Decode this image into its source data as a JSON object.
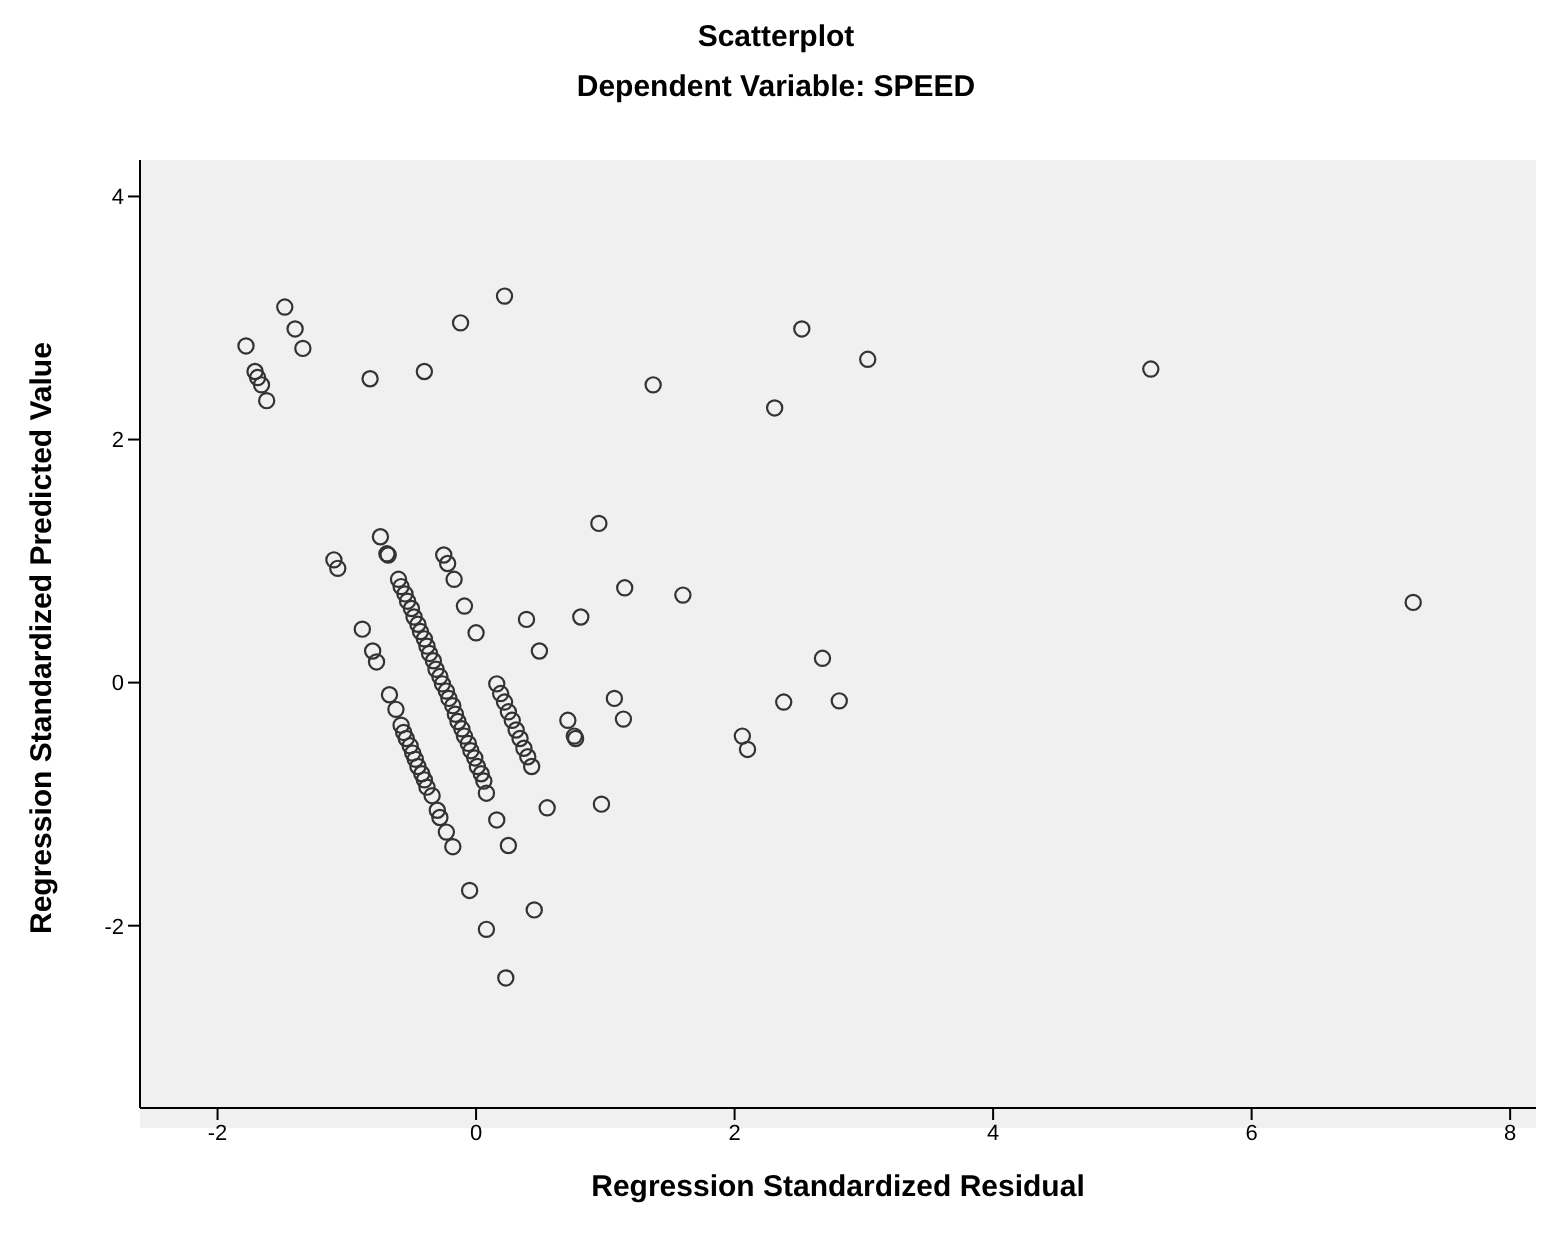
{
  "chart_data": {
    "type": "scatter",
    "title": "Scatterplot",
    "subtitle": "Dependent Variable: SPEED",
    "xlabel": "Regression Standardized Residual",
    "ylabel": "Regression Standardized Predicted Value",
    "xlim": [
      -2.6,
      8.2
    ],
    "ylim": [
      -3.5,
      4.3
    ],
    "xticks": [
      -2,
      0,
      2,
      4,
      6,
      8
    ],
    "yticks": [
      -2,
      0,
      2,
      4
    ],
    "grid": false,
    "legend": false,
    "marker": "circle",
    "series": [
      {
        "color": "#333333",
        "x": [
          -1.78,
          -1.71,
          -1.69,
          -1.66,
          -1.62,
          -1.48,
          -1.4,
          -1.34,
          -0.82,
          -0.4,
          -0.12,
          0.22,
          1.37,
          2.31,
          2.52,
          3.03,
          5.22,
          7.25,
          -1.1,
          -1.07,
          -0.74,
          -0.69,
          -0.68,
          -0.88,
          -0.8,
          -0.77,
          -0.67,
          -0.62,
          -0.34,
          -0.3,
          -0.28,
          -0.23,
          -0.18,
          -0.05,
          -0.25,
          -0.22,
          -0.17,
          -0.09,
          0.0,
          0.08,
          0.16,
          0.25,
          0.39,
          0.49,
          0.55,
          0.95,
          1.15,
          0.81,
          0.71,
          0.76,
          0.77,
          1.07,
          1.14,
          0.97,
          0.08,
          0.23,
          0.45,
          1.6,
          2.68,
          2.38,
          2.81,
          2.06,
          2.1,
          -0.6,
          -0.58,
          -0.55,
          -0.53,
          -0.5,
          -0.48,
          -0.45,
          -0.43,
          -0.4,
          -0.38,
          -0.36,
          -0.33,
          -0.31,
          -0.28,
          -0.26,
          -0.23,
          -0.21,
          -0.18,
          -0.16,
          -0.14,
          -0.11,
          -0.09,
          -0.06,
          -0.04,
          -0.01,
          0.01,
          0.04,
          0.06,
          -0.58,
          -0.56,
          -0.54,
          -0.51,
          -0.49,
          -0.47,
          -0.45,
          -0.42,
          -0.4,
          -0.38,
          0.16,
          0.19,
          0.22,
          0.25,
          0.28,
          0.31,
          0.34,
          0.37,
          0.4,
          0.43
        ],
        "values": [
          2.77,
          2.56,
          2.51,
          2.45,
          2.32,
          3.09,
          2.91,
          2.75,
          2.5,
          2.56,
          2.96,
          3.18,
          2.45,
          2.26,
          2.91,
          2.66,
          2.58,
          0.66,
          1.01,
          0.94,
          1.2,
          1.06,
          1.05,
          0.44,
          0.26,
          0.17,
          -0.1,
          -0.22,
          -0.93,
          -1.05,
          -1.11,
          -1.23,
          -1.35,
          -1.71,
          1.05,
          0.98,
          0.85,
          0.63,
          0.41,
          -0.91,
          -1.13,
          -1.34,
          0.52,
          0.26,
          -1.03,
          1.31,
          0.78,
          0.54,
          -0.31,
          -0.44,
          -0.46,
          -0.13,
          -0.3,
          -1.0,
          -2.03,
          -2.43,
          -1.87,
          0.72,
          0.2,
          -0.16,
          -0.15,
          -0.44,
          -0.55,
          0.85,
          0.79,
          0.73,
          0.67,
          0.61,
          0.54,
          0.48,
          0.42,
          0.36,
          0.3,
          0.24,
          0.18,
          0.11,
          0.05,
          -0.01,
          -0.07,
          -0.13,
          -0.19,
          -0.26,
          -0.32,
          -0.38,
          -0.44,
          -0.5,
          -0.56,
          -0.62,
          -0.69,
          -0.75,
          -0.81,
          -0.35,
          -0.41,
          -0.46,
          -0.52,
          -0.58,
          -0.63,
          -0.69,
          -0.75,
          -0.8,
          -0.86,
          -0.01,
          -0.09,
          -0.16,
          -0.24,
          -0.31,
          -0.39,
          -0.46,
          -0.54,
          -0.61,
          -0.69
        ]
      }
    ]
  }
}
